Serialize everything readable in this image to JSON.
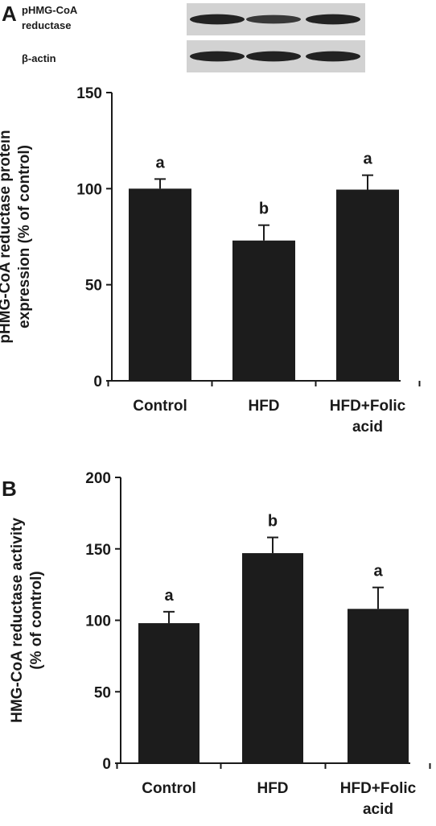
{
  "figure": {
    "panel_a_letter": "A",
    "panel_b_letter": "B",
    "blot": {
      "label_line1": "pHMG-CoA",
      "label_line2": "reductase",
      "actin_label": "β-actin",
      "band_intensity_row1": [
        0.85,
        0.6,
        0.85
      ],
      "band_intensity_row2": [
        0.85,
        0.85,
        0.85
      ]
    }
  },
  "chart_data": [
    {
      "type": "bar",
      "panel": "A",
      "categories": [
        "Control",
        "HFD",
        "HFD+Folic acid"
      ],
      "category_lines": [
        [
          "Control"
        ],
        [
          "HFD"
        ],
        [
          "HFD+Folic",
          "acid"
        ]
      ],
      "values": [
        100,
        73,
        99.5
      ],
      "errors": [
        5,
        8,
        7.5
      ],
      "significance": [
        "a",
        "b",
        "a"
      ],
      "ylabel_lines": [
        "pHMG-CoA reductase protein",
        "expression (% of control)"
      ],
      "ylim": [
        0,
        150
      ],
      "yticks": [
        0,
        50,
        100,
        150
      ],
      "bar_color": "#1c1c1c",
      "grid": false
    },
    {
      "type": "bar",
      "panel": "B",
      "categories": [
        "Control",
        "HFD",
        "HFD+Folic acid"
      ],
      "category_lines": [
        [
          "Control"
        ],
        [
          "HFD"
        ],
        [
          "HFD+Folic",
          "acid"
        ]
      ],
      "values": [
        98,
        147,
        108
      ],
      "errors": [
        8,
        11,
        15
      ],
      "significance": [
        "a",
        "b",
        "a"
      ],
      "ylabel_lines": [
        "HMG-CoA reductase activity",
        "(% of control)"
      ],
      "ylim": [
        0,
        200
      ],
      "yticks": [
        0,
        50,
        100,
        150,
        200
      ],
      "bar_color": "#1c1c1c",
      "grid": false
    }
  ]
}
